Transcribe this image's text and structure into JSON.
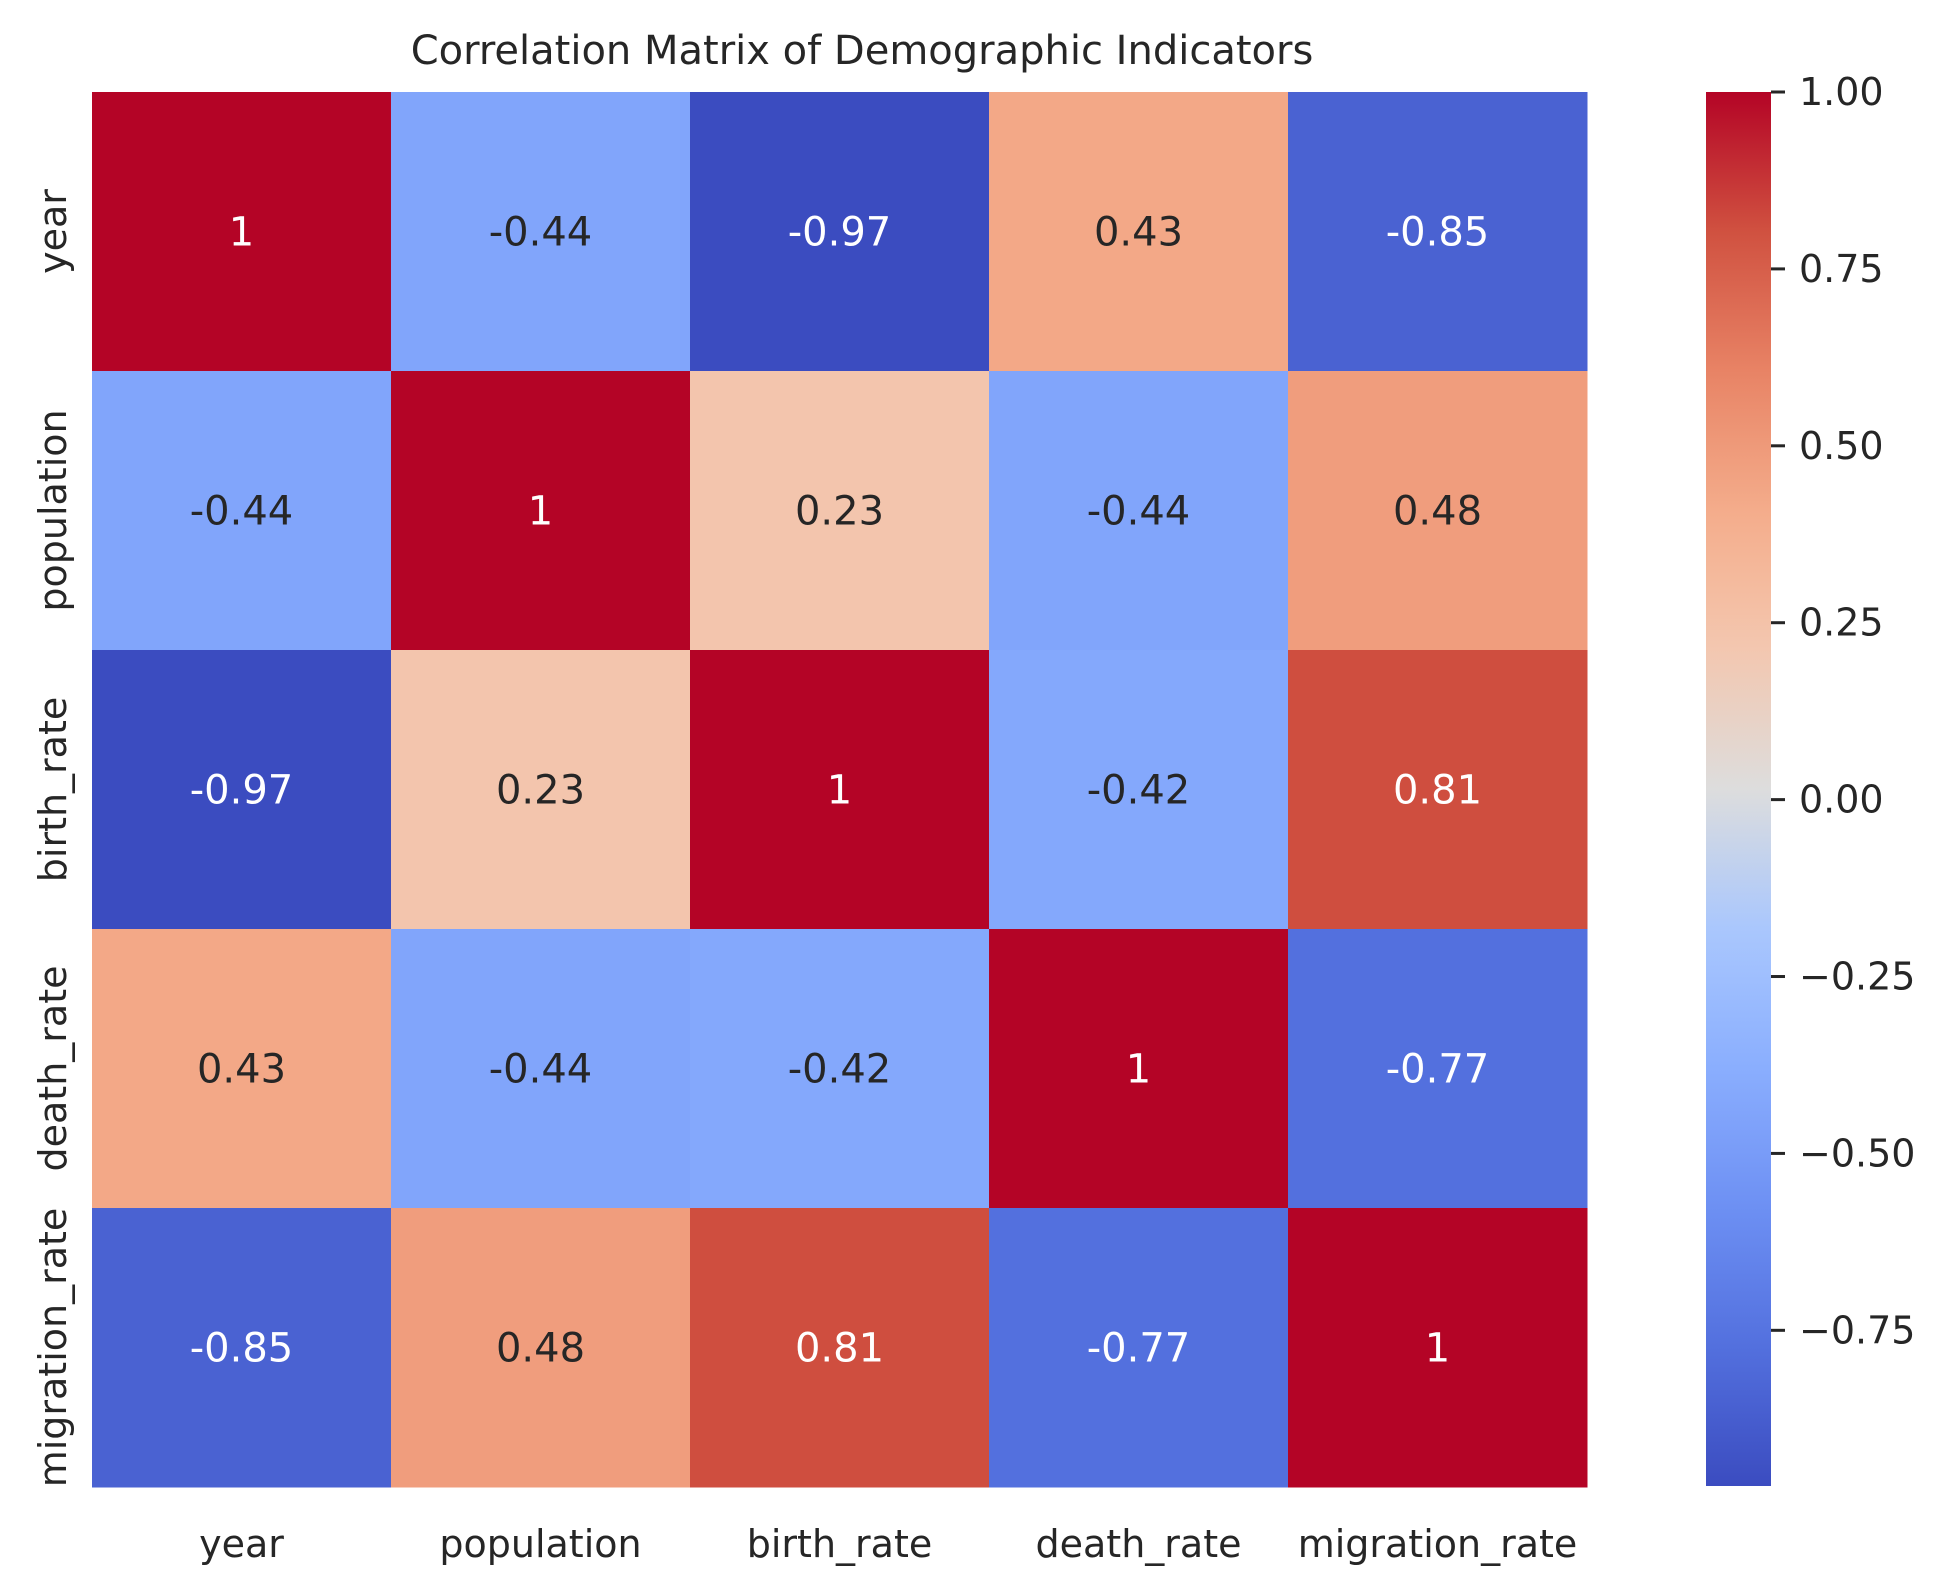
{
  "chart_data": {
    "type": "heatmap",
    "title": "Correlation Matrix of Demographic Indicators",
    "xlabel": "",
    "ylabel": "",
    "x_categories": [
      "year",
      "population",
      "birth_rate",
      "death_rate",
      "migration_rate"
    ],
    "y_categories": [
      "year",
      "population",
      "birth_rate",
      "death_rate",
      "migration_rate"
    ],
    "values": [
      [
        1,
        -0.44,
        -0.97,
        0.43,
        -0.85
      ],
      [
        -0.44,
        1,
        0.23,
        -0.44,
        0.48
      ],
      [
        -0.97,
        0.23,
        1,
        -0.42,
        0.81
      ],
      [
        0.43,
        -0.44,
        -0.42,
        1,
        -0.77
      ],
      [
        -0.85,
        0.48,
        0.81,
        -0.77,
        1
      ]
    ],
    "annotations": [
      [
        "1",
        "-0.44",
        "-0.97",
        "0.43",
        "-0.85"
      ],
      [
        "-0.44",
        "1",
        "0.23",
        "-0.44",
        "0.48"
      ],
      [
        "-0.97",
        "0.23",
        "1",
        "-0.42",
        "0.81"
      ],
      [
        "0.43",
        "-0.44",
        "-0.42",
        "1",
        "-0.77"
      ],
      [
        "-0.85",
        "0.48",
        "0.81",
        "-0.77",
        "1"
      ]
    ],
    "colormap": "coolwarm",
    "vmin": -0.97,
    "vmax": 1.0,
    "colorbar": {
      "ticks": [
        1.0,
        0.75,
        0.5,
        0.25,
        0.0,
        -0.25,
        -0.5,
        -0.75
      ],
      "tick_labels": [
        "1.00",
        "0.75",
        "0.50",
        "0.25",
        "0.00",
        "−0.25",
        "−0.50",
        "−0.75"
      ],
      "placement": "right"
    },
    "grid": false
  }
}
